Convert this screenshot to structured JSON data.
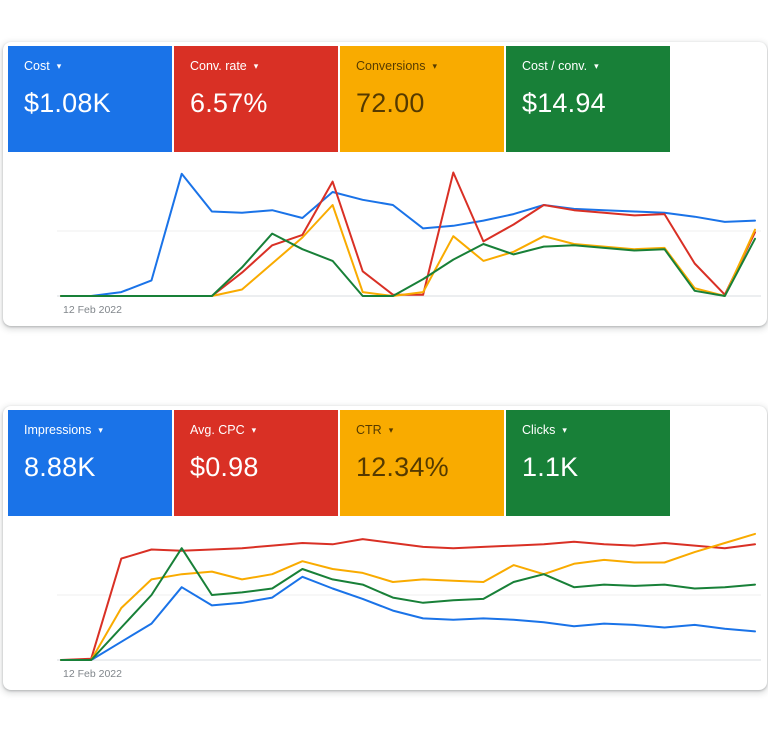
{
  "page": {
    "background": "#ffffff"
  },
  "icons": {
    "chevron_down": "▾"
  },
  "panels": [
    {
      "date_label": "12 Feb 2022",
      "metrics": [
        {
          "label": "Cost",
          "value": "$1.08K",
          "bg": "#1a73e8",
          "fg": "#ffffff"
        },
        {
          "label": "Conv. rate",
          "value": "6.57%",
          "bg": "#d93025",
          "fg": "#ffffff"
        },
        {
          "label": "Conversions",
          "value": "72.00",
          "bg": "#f9ab00",
          "fg": "rgba(0,0,0,0.66)"
        },
        {
          "label": "Cost / conv.",
          "value": "$14.94",
          "bg": "#188038",
          "fg": "#ffffff"
        }
      ]
    },
    {
      "date_label": "12 Feb 2022",
      "metrics": [
        {
          "label": "Impressions",
          "value": "8.88K",
          "bg": "#1a73e8",
          "fg": "#ffffff"
        },
        {
          "label": "Avg. CPC",
          "value": "$0.98",
          "bg": "#d93025",
          "fg": "#ffffff"
        },
        {
          "label": "CTR",
          "value": "12.34%",
          "bg": "#f9ab00",
          "fg": "rgba(0,0,0,0.66)"
        },
        {
          "label": "Clicks",
          "value": "1.1K",
          "bg": "#188038",
          "fg": "#ffffff"
        }
      ]
    }
  ],
  "chart_data": [
    {
      "type": "line",
      "title": "",
      "x_axis": {
        "first_tick_label": "12 Feb 2022",
        "kind": "time-daily",
        "other_tick_labels_visible": false
      },
      "y_axis": {
        "tick_labels_visible": false,
        "values_are": "estimated percent of plot height (0 = baseline, 100 = top)"
      },
      "grid": {
        "horizontal_lines_at": [
          0,
          50
        ]
      },
      "legend": "color-coded metric cards above the chart",
      "series": [
        {
          "name": "Cost",
          "color": "#1a73e8",
          "card_value": "$1.08K",
          "values": [
            0,
            0,
            3,
            12,
            94,
            65,
            64,
            66,
            60,
            80,
            74,
            70,
            52,
            54,
            58,
            63,
            70,
            67,
            66,
            65,
            64,
            61,
            57,
            58
          ]
        },
        {
          "name": "Conv. rate",
          "color": "#d93025",
          "card_value": "6.57%",
          "values": [
            0,
            0,
            0,
            0,
            0,
            0,
            18,
            39,
            47,
            88,
            19,
            1,
            1,
            95,
            42,
            55,
            70,
            66,
            64,
            62,
            63,
            25,
            1,
            49
          ]
        },
        {
          "name": "Conversions",
          "color": "#f9ab00",
          "card_value": "72.00",
          "values": [
            0,
            0,
            0,
            0,
            0,
            0,
            5,
            25,
            45,
            70,
            3,
            0,
            3,
            46,
            27,
            34,
            46,
            40,
            38,
            36,
            37,
            6,
            0,
            51
          ]
        },
        {
          "name": "Cost / conv.",
          "color": "#188038",
          "card_value": "$14.94",
          "values": [
            0,
            0,
            0,
            0,
            0,
            0,
            22,
            48,
            36,
            27,
            0,
            0,
            13,
            28,
            40,
            32,
            38,
            39,
            37,
            35,
            36,
            4,
            0,
            44
          ]
        }
      ]
    },
    {
      "type": "line",
      "title": "",
      "x_axis": {
        "first_tick_label": "12 Feb 2022",
        "kind": "time-daily",
        "other_tick_labels_visible": false
      },
      "y_axis": {
        "tick_labels_visible": false,
        "values_are": "estimated percent of plot height (0 = baseline, 100 = top)"
      },
      "grid": {
        "horizontal_lines_at": [
          0,
          50
        ]
      },
      "legend": "color-coded metric cards above the chart",
      "series": [
        {
          "name": "Impressions",
          "color": "#1a73e8",
          "card_value": "8.88K",
          "values": [
            0,
            0,
            14,
            28,
            56,
            42,
            44,
            48,
            64,
            55,
            47,
            38,
            32,
            31,
            32,
            31,
            29,
            26,
            28,
            27,
            25,
            27,
            24,
            22
          ]
        },
        {
          "name": "Avg. CPC",
          "color": "#d93025",
          "card_value": "$0.98",
          "values": [
            0,
            1,
            78,
            85,
            84,
            85,
            86,
            88,
            90,
            89,
            93,
            90,
            87,
            86,
            87,
            88,
            89,
            91,
            89,
            88,
            90,
            88,
            86,
            89
          ]
        },
        {
          "name": "CTR",
          "color": "#f9ab00",
          "card_value": "12.34%",
          "values": [
            0,
            0,
            40,
            62,
            66,
            68,
            62,
            66,
            76,
            70,
            67,
            60,
            62,
            61,
            60,
            73,
            66,
            74,
            77,
            75,
            75,
            83,
            90,
            97
          ]
        },
        {
          "name": "Clicks",
          "color": "#188038",
          "card_value": "1.1K",
          "values": [
            0,
            0,
            25,
            50,
            86,
            50,
            52,
            55,
            70,
            62,
            58,
            48,
            44,
            46,
            47,
            60,
            66,
            56,
            58,
            57,
            58,
            55,
            56,
            58
          ]
        }
      ]
    }
  ]
}
